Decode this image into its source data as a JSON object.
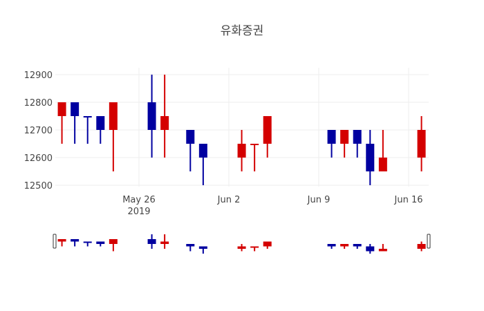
{
  "title": "유화증권",
  "colors": {
    "increasing": "#d40000",
    "decreasing": "#0000a0",
    "grid": "#eeeeee"
  },
  "chart_data": {
    "type": "candlestick",
    "title": "유화증권",
    "xlabel": "",
    "ylabel": "",
    "ylim": [
      12480,
      12920
    ],
    "yticks": [
      12500,
      12600,
      12700,
      12800,
      12900
    ],
    "xticks": [
      {
        "date": "2019-05-26",
        "label": "May 26",
        "sublabel": "2019"
      },
      {
        "date": "2019-06-02",
        "label": "Jun 2"
      },
      {
        "date": "2019-06-09",
        "label": "Jun 9"
      },
      {
        "date": "2019-06-16",
        "label": "Jun 16"
      }
    ],
    "grid": true,
    "rangeslider": true,
    "series": [
      {
        "date": "2019-05-20",
        "open": 12750,
        "high": 12800,
        "low": 12650,
        "close": 12800
      },
      {
        "date": "2019-05-21",
        "open": 12800,
        "high": 12800,
        "low": 12650,
        "close": 12750
      },
      {
        "date": "2019-05-22",
        "open": 12750,
        "high": 12750,
        "low": 12650,
        "close": 12750
      },
      {
        "date": "2019-05-23",
        "open": 12750,
        "high": 12750,
        "low": 12650,
        "close": 12700
      },
      {
        "date": "2019-05-24",
        "open": 12700,
        "high": 12800,
        "low": 12550,
        "close": 12800
      },
      {
        "date": "2019-05-27",
        "open": 12800,
        "high": 12900,
        "low": 12600,
        "close": 12700
      },
      {
        "date": "2019-05-28",
        "open": 12700,
        "high": 12900,
        "low": 12600,
        "close": 12750
      },
      {
        "date": "2019-05-30",
        "open": 12700,
        "high": 12700,
        "low": 12550,
        "close": 12650
      },
      {
        "date": "2019-05-31",
        "open": 12650,
        "high": 12650,
        "low": 12500,
        "close": 12600
      },
      {
        "date": "2019-06-03",
        "open": 12600,
        "high": 12700,
        "low": 12550,
        "close": 12650
      },
      {
        "date": "2019-06-04",
        "open": 12650,
        "high": 12650,
        "low": 12550,
        "close": 12650
      },
      {
        "date": "2019-06-05",
        "open": 12650,
        "high": 12750,
        "low": 12600,
        "close": 12750
      },
      {
        "date": "2019-06-10",
        "open": 12700,
        "high": 12700,
        "low": 12600,
        "close": 12650
      },
      {
        "date": "2019-06-11",
        "open": 12650,
        "high": 12700,
        "low": 12600,
        "close": 12700
      },
      {
        "date": "2019-06-12",
        "open": 12700,
        "high": 12700,
        "low": 12600,
        "close": 12650
      },
      {
        "date": "2019-06-13",
        "open": 12650,
        "high": 12700,
        "low": 12500,
        "close": 12550
      },
      {
        "date": "2019-06-14",
        "open": 12550,
        "high": 12700,
        "low": 12550,
        "close": 12600
      },
      {
        "date": "2019-06-17",
        "open": 12600,
        "high": 12750,
        "low": 12550,
        "close": 12700
      }
    ]
  }
}
